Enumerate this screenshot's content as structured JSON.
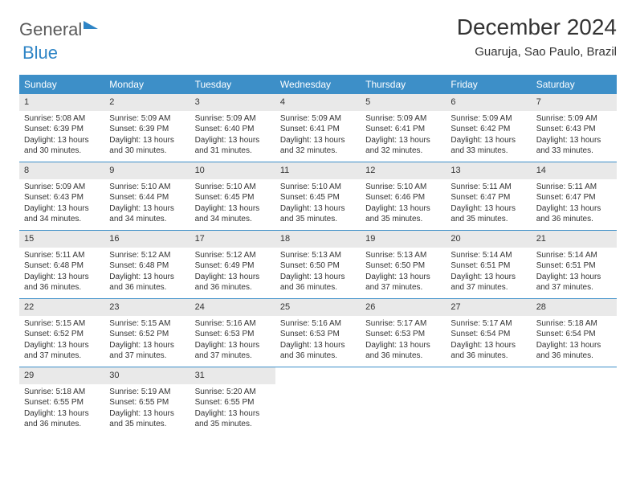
{
  "brand": {
    "part1": "General",
    "part2": "Blue"
  },
  "title": "December 2024",
  "location": "Guaruja, Sao Paulo, Brazil",
  "colors": {
    "header_bg": "#3d8fc8",
    "header_text": "#ffffff",
    "date_bg": "#e9e9e9",
    "divider": "#3d8fc8",
    "text": "#333333",
    "brand_gray": "#5a5a5a",
    "brand_blue": "#2f85c6"
  },
  "days_of_week": [
    "Sunday",
    "Monday",
    "Tuesday",
    "Wednesday",
    "Thursday",
    "Friday",
    "Saturday"
  ],
  "weeks": [
    [
      {
        "num": "1",
        "sunrise": "Sunrise: 5:08 AM",
        "sunset": "Sunset: 6:39 PM",
        "daylight": "Daylight: 13 hours and 30 minutes."
      },
      {
        "num": "2",
        "sunrise": "Sunrise: 5:09 AM",
        "sunset": "Sunset: 6:39 PM",
        "daylight": "Daylight: 13 hours and 30 minutes."
      },
      {
        "num": "3",
        "sunrise": "Sunrise: 5:09 AM",
        "sunset": "Sunset: 6:40 PM",
        "daylight": "Daylight: 13 hours and 31 minutes."
      },
      {
        "num": "4",
        "sunrise": "Sunrise: 5:09 AM",
        "sunset": "Sunset: 6:41 PM",
        "daylight": "Daylight: 13 hours and 32 minutes."
      },
      {
        "num": "5",
        "sunrise": "Sunrise: 5:09 AM",
        "sunset": "Sunset: 6:41 PM",
        "daylight": "Daylight: 13 hours and 32 minutes."
      },
      {
        "num": "6",
        "sunrise": "Sunrise: 5:09 AM",
        "sunset": "Sunset: 6:42 PM",
        "daylight": "Daylight: 13 hours and 33 minutes."
      },
      {
        "num": "7",
        "sunrise": "Sunrise: 5:09 AM",
        "sunset": "Sunset: 6:43 PM",
        "daylight": "Daylight: 13 hours and 33 minutes."
      }
    ],
    [
      {
        "num": "8",
        "sunrise": "Sunrise: 5:09 AM",
        "sunset": "Sunset: 6:43 PM",
        "daylight": "Daylight: 13 hours and 34 minutes."
      },
      {
        "num": "9",
        "sunrise": "Sunrise: 5:10 AM",
        "sunset": "Sunset: 6:44 PM",
        "daylight": "Daylight: 13 hours and 34 minutes."
      },
      {
        "num": "10",
        "sunrise": "Sunrise: 5:10 AM",
        "sunset": "Sunset: 6:45 PM",
        "daylight": "Daylight: 13 hours and 34 minutes."
      },
      {
        "num": "11",
        "sunrise": "Sunrise: 5:10 AM",
        "sunset": "Sunset: 6:45 PM",
        "daylight": "Daylight: 13 hours and 35 minutes."
      },
      {
        "num": "12",
        "sunrise": "Sunrise: 5:10 AM",
        "sunset": "Sunset: 6:46 PM",
        "daylight": "Daylight: 13 hours and 35 minutes."
      },
      {
        "num": "13",
        "sunrise": "Sunrise: 5:11 AM",
        "sunset": "Sunset: 6:47 PM",
        "daylight": "Daylight: 13 hours and 35 minutes."
      },
      {
        "num": "14",
        "sunrise": "Sunrise: 5:11 AM",
        "sunset": "Sunset: 6:47 PM",
        "daylight": "Daylight: 13 hours and 36 minutes."
      }
    ],
    [
      {
        "num": "15",
        "sunrise": "Sunrise: 5:11 AM",
        "sunset": "Sunset: 6:48 PM",
        "daylight": "Daylight: 13 hours and 36 minutes."
      },
      {
        "num": "16",
        "sunrise": "Sunrise: 5:12 AM",
        "sunset": "Sunset: 6:48 PM",
        "daylight": "Daylight: 13 hours and 36 minutes."
      },
      {
        "num": "17",
        "sunrise": "Sunrise: 5:12 AM",
        "sunset": "Sunset: 6:49 PM",
        "daylight": "Daylight: 13 hours and 36 minutes."
      },
      {
        "num": "18",
        "sunrise": "Sunrise: 5:13 AM",
        "sunset": "Sunset: 6:50 PM",
        "daylight": "Daylight: 13 hours and 36 minutes."
      },
      {
        "num": "19",
        "sunrise": "Sunrise: 5:13 AM",
        "sunset": "Sunset: 6:50 PM",
        "daylight": "Daylight: 13 hours and 37 minutes."
      },
      {
        "num": "20",
        "sunrise": "Sunrise: 5:14 AM",
        "sunset": "Sunset: 6:51 PM",
        "daylight": "Daylight: 13 hours and 37 minutes."
      },
      {
        "num": "21",
        "sunrise": "Sunrise: 5:14 AM",
        "sunset": "Sunset: 6:51 PM",
        "daylight": "Daylight: 13 hours and 37 minutes."
      }
    ],
    [
      {
        "num": "22",
        "sunrise": "Sunrise: 5:15 AM",
        "sunset": "Sunset: 6:52 PM",
        "daylight": "Daylight: 13 hours and 37 minutes."
      },
      {
        "num": "23",
        "sunrise": "Sunrise: 5:15 AM",
        "sunset": "Sunset: 6:52 PM",
        "daylight": "Daylight: 13 hours and 37 minutes."
      },
      {
        "num": "24",
        "sunrise": "Sunrise: 5:16 AM",
        "sunset": "Sunset: 6:53 PM",
        "daylight": "Daylight: 13 hours and 37 minutes."
      },
      {
        "num": "25",
        "sunrise": "Sunrise: 5:16 AM",
        "sunset": "Sunset: 6:53 PM",
        "daylight": "Daylight: 13 hours and 36 minutes."
      },
      {
        "num": "26",
        "sunrise": "Sunrise: 5:17 AM",
        "sunset": "Sunset: 6:53 PM",
        "daylight": "Daylight: 13 hours and 36 minutes."
      },
      {
        "num": "27",
        "sunrise": "Sunrise: 5:17 AM",
        "sunset": "Sunset: 6:54 PM",
        "daylight": "Daylight: 13 hours and 36 minutes."
      },
      {
        "num": "28",
        "sunrise": "Sunrise: 5:18 AM",
        "sunset": "Sunset: 6:54 PM",
        "daylight": "Daylight: 13 hours and 36 minutes."
      }
    ],
    [
      {
        "num": "29",
        "sunrise": "Sunrise: 5:18 AM",
        "sunset": "Sunset: 6:55 PM",
        "daylight": "Daylight: 13 hours and 36 minutes."
      },
      {
        "num": "30",
        "sunrise": "Sunrise: 5:19 AM",
        "sunset": "Sunset: 6:55 PM",
        "daylight": "Daylight: 13 hours and 35 minutes."
      },
      {
        "num": "31",
        "sunrise": "Sunrise: 5:20 AM",
        "sunset": "Sunset: 6:55 PM",
        "daylight": "Daylight: 13 hours and 35 minutes."
      },
      {
        "empty": true
      },
      {
        "empty": true
      },
      {
        "empty": true
      },
      {
        "empty": true
      }
    ]
  ]
}
